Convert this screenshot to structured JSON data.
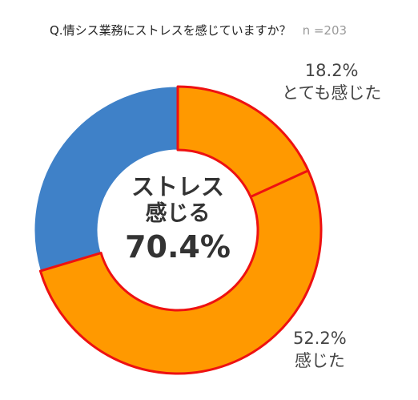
{
  "question": "Q.情シス業務にストレスを感じていますか？",
  "sample": "n =203",
  "center": {
    "line1": "ストレス",
    "line2": "感じる",
    "value": "70.4%"
  },
  "labels": [
    {
      "pct": "18.2%",
      "text": "とても感じた"
    },
    {
      "pct": "52.2%",
      "text": "感じた"
    }
  ],
  "colors": {
    "orange": "#ff9900",
    "blue": "#3f81c8",
    "red_outline": "#ee1111"
  },
  "chart_data": {
    "type": "pie",
    "title": "Q.情シス業務にストレスを感じていますか？",
    "subtitle": "n =203",
    "slices": [
      {
        "label": "とても感じた",
        "value": 18.2,
        "color": "#ff9900",
        "outlined": true
      },
      {
        "label": "感じた",
        "value": 52.2,
        "color": "#ff9900",
        "outlined": true
      },
      {
        "label": "",
        "value": 29.6,
        "color": "#3f81c8",
        "outlined": false
      }
    ],
    "donut": true,
    "center_text": "ストレス 感じる 70.4%"
  }
}
